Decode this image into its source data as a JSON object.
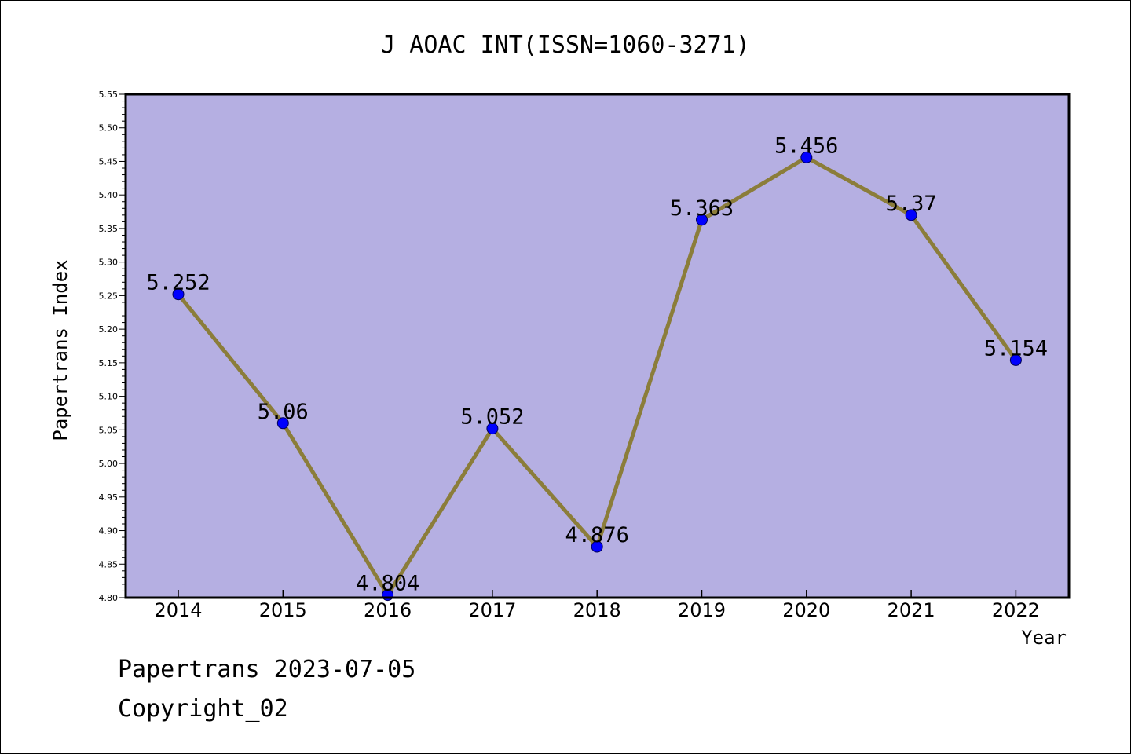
{
  "chart_data": {
    "type": "line",
    "title": "J AOAC INT(ISSN=1060-3271)",
    "xlabel": "Year",
    "ylabel": "Papertrans Index",
    "categories": [
      "2014",
      "2015",
      "2016",
      "2017",
      "2018",
      "2019",
      "2020",
      "2021",
      "2022"
    ],
    "series": [
      {
        "values": [
          5.252,
          5.06,
          4.804,
          5.052,
          4.876,
          5.363,
          5.456,
          5.37,
          5.154
        ]
      }
    ],
    "data_labels": [
      "5.252",
      "5.06",
      "4.804",
      "5.052",
      "4.876",
      "5.363",
      "5.456",
      "5.37",
      "5.154"
    ],
    "ylim": [
      4.8,
      5.55
    ],
    "yticks": [
      "4.80",
      "4.85",
      "4.90",
      "4.95",
      "5.00",
      "5.05",
      "5.10",
      "5.15",
      "5.20",
      "5.25",
      "5.30",
      "5.35",
      "5.40",
      "5.45",
      "5.50",
      "5.55"
    ],
    "grid": false,
    "legend": "none",
    "colors": {
      "plot_background": "#b5afe2",
      "line": "#8b7d3a",
      "marker": "#0000ff",
      "axis": "#000000"
    }
  },
  "footer": {
    "source": "Papertrans 2023-07-05",
    "copyright": "Copyright_02"
  }
}
